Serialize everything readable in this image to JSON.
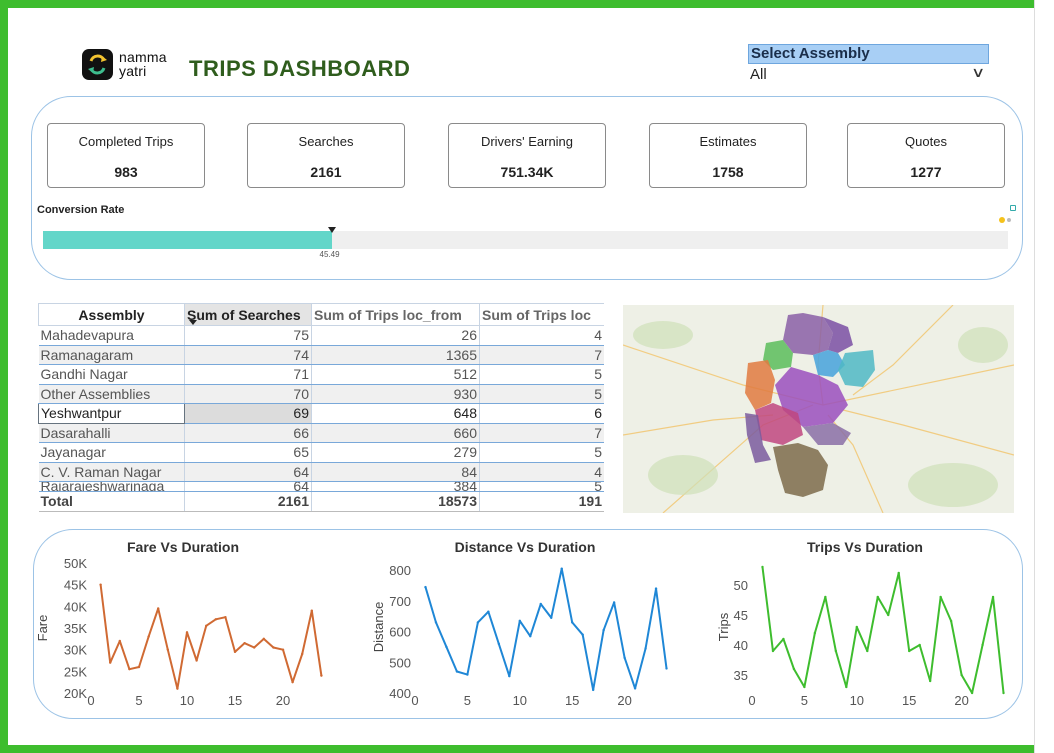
{
  "header": {
    "logo_text_line1": "namma",
    "logo_text_line2": "yatri",
    "title": "TRIPS DASHBOARD"
  },
  "slicer": {
    "label": "Select Assembly",
    "value": "All"
  },
  "kpis": [
    {
      "label": "Completed Trips",
      "value": "983"
    },
    {
      "label": "Searches",
      "value": "2161"
    },
    {
      "label": "Drivers' Earning",
      "value": "751.34K"
    },
    {
      "label": "Estimates",
      "value": "1758"
    },
    {
      "label": "Quotes",
      "value": "1277"
    }
  ],
  "conversion": {
    "label": "Conversion Rate",
    "value": 45.49,
    "value_text": "45.49",
    "fill_fraction": 0.299,
    "fill_color": "#63d6c9"
  },
  "table": {
    "columns": [
      "Assembly",
      "Sum of Searches",
      "Sum of Trips loc_from",
      "Sum of Trips loc"
    ],
    "rows": [
      [
        "Mahadevapura",
        "75",
        "26",
        "4"
      ],
      [
        "Ramanagaram",
        "74",
        "1365",
        "7"
      ],
      [
        "Gandhi Nagar",
        "71",
        "512",
        "5"
      ],
      [
        "Other Assemblies",
        "70",
        "930",
        "5"
      ],
      [
        "Yeshwantpur",
        "69",
        "648",
        "6"
      ],
      [
        "Dasarahalli",
        "66",
        "660",
        "7"
      ],
      [
        "Jayanagar",
        "65",
        "279",
        "5"
      ],
      [
        "C. V. Raman Nagar",
        "64",
        "84",
        "4"
      ],
      [
        "Rajarajeshwarinaga",
        "64",
        "384",
        "5"
      ]
    ],
    "total": [
      "Total",
      "2161",
      "18573",
      "191"
    ]
  },
  "chart_data": [
    {
      "type": "line",
      "title": "Fare Vs Duration",
      "xlabel": "",
      "ylabel": "Fare",
      "y_tick_labels": [
        "20K",
        "25K",
        "30K",
        "35K",
        "40K",
        "45K",
        "50K"
      ],
      "x_ticks": [
        0,
        5,
        10,
        15,
        20
      ],
      "xlim": [
        0,
        25
      ],
      "ylim": [
        20000,
        50000
      ],
      "color": "#d06a33",
      "x": [
        1,
        2,
        3,
        4,
        5,
        6,
        7,
        8,
        9,
        10,
        11,
        12,
        13,
        14,
        15,
        16,
        17,
        18,
        19,
        20,
        21,
        22,
        23,
        24
      ],
      "values": [
        45000,
        27000,
        32000,
        25500,
        26000,
        33000,
        39500,
        30000,
        21000,
        34000,
        27500,
        35500,
        37000,
        37500,
        29500,
        31500,
        30500,
        32500,
        30500,
        30000,
        22500,
        29000,
        39000,
        24000
      ]
    },
    {
      "type": "line",
      "title": "Distance Vs Duration",
      "xlabel": "",
      "ylabel": "Distance",
      "y_ticks": [
        400,
        500,
        600,
        700,
        800
      ],
      "x_ticks": [
        0,
        5,
        10,
        15,
        20
      ],
      "xlim": [
        0,
        25
      ],
      "ylim": [
        400,
        830
      ],
      "color": "#1f87d6",
      "x": [
        1,
        2,
        3,
        4,
        5,
        6,
        7,
        8,
        9,
        10,
        11,
        12,
        13,
        14,
        15,
        16,
        17,
        18,
        19,
        20,
        21,
        22,
        23,
        24
      ],
      "values": [
        745,
        630,
        550,
        470,
        460,
        630,
        665,
        560,
        455,
        635,
        585,
        690,
        645,
        805,
        630,
        590,
        410,
        605,
        695,
        515,
        415,
        545,
        740,
        480
      ]
    },
    {
      "type": "line",
      "title": "Trips Vs Duration",
      "xlabel": "",
      "ylabel": "Trips",
      "y_ticks": [
        35,
        40,
        45,
        50
      ],
      "x_ticks": [
        0,
        5,
        10,
        15,
        20
      ],
      "xlim": [
        0,
        25
      ],
      "ylim": [
        32,
        54
      ],
      "color": "#3ebd2e",
      "x": [
        1,
        2,
        3,
        4,
        5,
        6,
        7,
        8,
        9,
        10,
        11,
        12,
        13,
        14,
        15,
        16,
        17,
        18,
        19,
        20,
        21,
        22,
        23,
        24
      ],
      "values": [
        53,
        39,
        41,
        36,
        33,
        42,
        48,
        39,
        33,
        43,
        39,
        48,
        45,
        52,
        39,
        40,
        34,
        48,
        44,
        35,
        32,
        40,
        48,
        32
      ]
    }
  ],
  "map_regions": [
    {
      "name": "purple-region",
      "color": "#8a5fa6"
    },
    {
      "name": "green-region",
      "color": "#5bbd5a"
    },
    {
      "name": "blue-region",
      "color": "#4fa6dc"
    },
    {
      "name": "teal-region",
      "color": "#4fb9c4"
    },
    {
      "name": "orange-region",
      "color": "#e07a3f"
    },
    {
      "name": "magenta-region",
      "color": "#c0477f"
    },
    {
      "name": "brown-region",
      "color": "#7d6b4a"
    },
    {
      "name": "violet-region",
      "color": "#7a4fa3"
    }
  ]
}
